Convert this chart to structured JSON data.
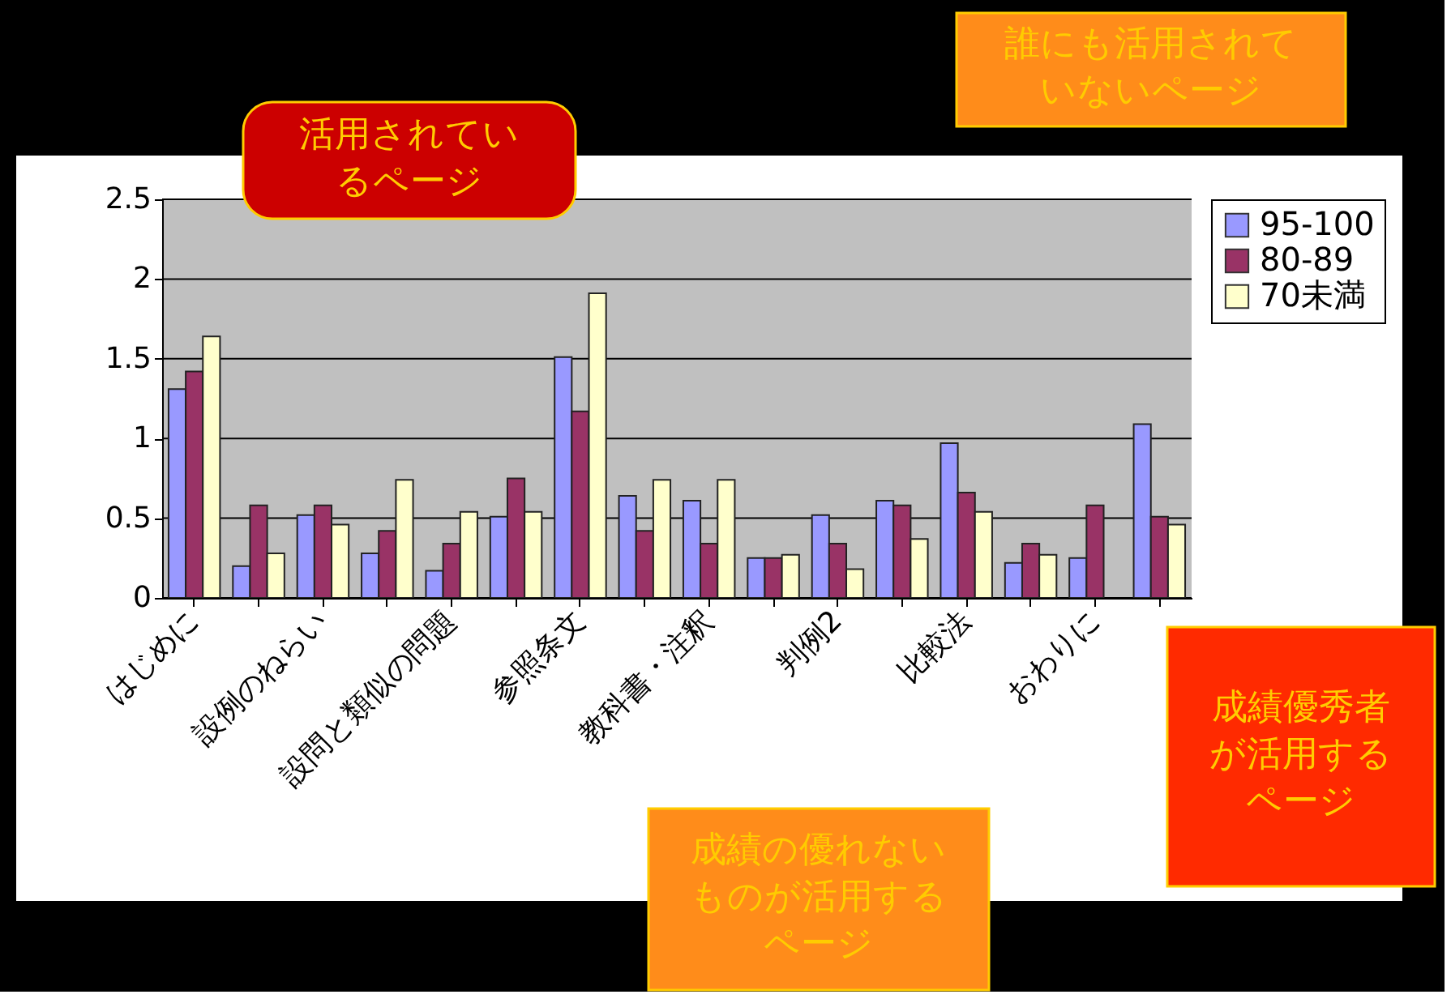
{
  "chart_data": {
    "type": "bar",
    "categories": [
      "はじめに",
      null,
      "設例のねらい",
      null,
      "設問と類似の問題",
      null,
      "参照条文",
      null,
      "教科書・注釈",
      null,
      "判例2",
      null,
      "比較法",
      null,
      "おわりに",
      null
    ],
    "series": [
      {
        "name": "95-100",
        "color": "#9999ff",
        "values": [
          1.31,
          0.2,
          0.52,
          0.28,
          0.17,
          0.51,
          1.51,
          0.64,
          0.61,
          0.25,
          0.52,
          0.61,
          0.97,
          0.22,
          0.25,
          1.09
        ]
      },
      {
        "name": "80-89",
        "color": "#993366",
        "values": [
          1.42,
          0.58,
          0.58,
          0.42,
          0.34,
          0.75,
          1.17,
          0.42,
          0.34,
          0.25,
          0.34,
          0.58,
          0.66,
          0.34,
          0.58,
          0.51
        ]
      },
      {
        "name": "70未満",
        "color": "#ffffcc",
        "values": [
          1.64,
          0.28,
          0.46,
          0.74,
          0.54,
          0.54,
          1.91,
          0.74,
          0.74,
          0.27,
          0.18,
          0.37,
          0.54,
          0.27,
          null,
          0.46
        ]
      }
    ],
    "ylim": [
      0,
      2.5
    ],
    "yticks": [
      0,
      0.5,
      1,
      1.5,
      2,
      2.5
    ],
    "grid": "y",
    "legend": "right",
    "annotations": [
      "活用されているページ",
      "誰にも活用されていないページ",
      "成績の優れないものが活用するページ",
      "成績優秀者が活用するページ"
    ]
  }
}
